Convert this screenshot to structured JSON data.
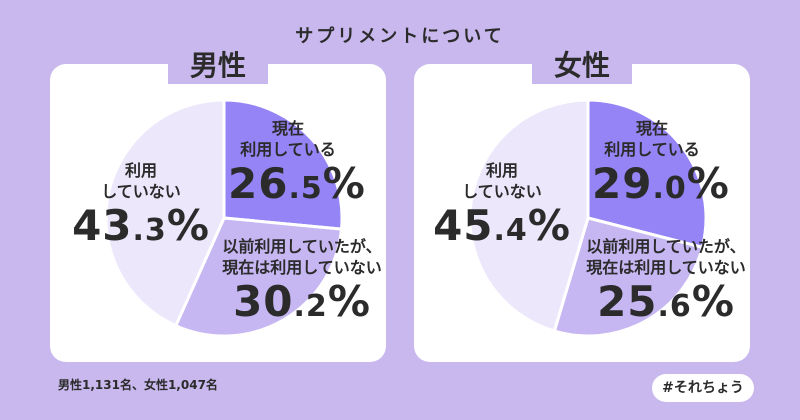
{
  "title": "サプリメントについて",
  "colors": {
    "background": "#c9b8ee",
    "current_use": "#9584f5",
    "past_use": "#c6b6f2",
    "never_use": "#ece7fb",
    "panel": "#ffffff"
  },
  "chart_data": [
    {
      "type": "pie",
      "title": "男性",
      "categories": [
        "現在 利用している",
        "以前利用していたが、現在は利用していない",
        "利用していない"
      ],
      "values": [
        26.5,
        30.2,
        43.3
      ],
      "labels": [
        {
          "name": "現在\n利用している",
          "value": "26.5%"
        },
        {
          "name": "以前利用していたが、\n現在は利用していない",
          "value": "30.2%"
        },
        {
          "name": "利用\nしていない",
          "value": "43.3%"
        }
      ]
    },
    {
      "type": "pie",
      "title": "女性",
      "categories": [
        "現在 利用している",
        "以前利用していたが、現在は利用していない",
        "利用していない"
      ],
      "values": [
        29.0,
        25.6,
        45.4
      ],
      "labels": [
        {
          "name": "現在\n利用している",
          "value": "29.0%"
        },
        {
          "name": "以前利用していたが、\n現在は利用していない",
          "value": "25.6%"
        },
        {
          "name": "利用\nしていない",
          "value": "45.4%"
        }
      ]
    }
  ],
  "footnote": "男性1,131名、女性1,047名",
  "hashtag": "#それちょう"
}
